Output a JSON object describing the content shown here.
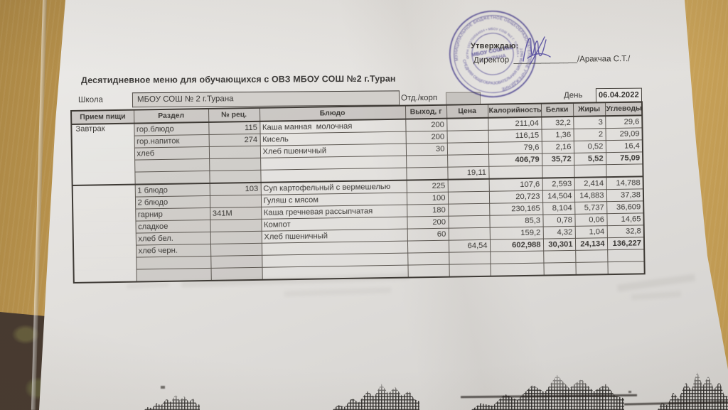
{
  "title": "Десятидневное меню для обучающихся с ОВЗ МБОУ СОШ №2 г.Туран",
  "school_row": {
    "school_label": "Школа",
    "school_value": "МБОУ СОШ № 2 г.Турана",
    "dept_label": "Отд./корп",
    "day_label": "День",
    "day_value": "06.04.2022"
  },
  "approval": {
    "approve_text": "Утверждаю:",
    "director_line": "Директор  ______________/Аракчаа С.Т./"
  },
  "stamp": {
    "ring_top": "МУНИЦИПАЛЬНОЕ БЮДЖЕТНОЕ ОБЩЕОБРАЗОВАТЕЛЬНОЕ УЧРЕЖДЕНИЕ",
    "ring_bottom": "СРЕДНЯЯ ОБЩЕОБРАЗОВАТЕЛЬНАЯ ШКОЛА №2 Г. ТУРАНА",
    "ring_inner": "ОГРН 1021700564654 • МБОУ СОШ №2 Г. ТУРАНА •",
    "center_line1": "МБОУ СОШ №2",
    "center_line2": "Г. ТУРАНА",
    "ink_color": "#584fa8"
  },
  "colors": {
    "paper": "#e5e3e0",
    "wood": "#bd9750",
    "table_line": "#4a4540",
    "cell_shade": "#c9c6c2",
    "signature_ink": "#4f46a0"
  },
  "menu_table": {
    "columns": [
      "Прием пищи",
      "Раздел",
      "№ рец.",
      "Блюдо",
      "Выход, г",
      "Цена",
      "Калорийность",
      "Белки",
      "Жиры",
      "Углеводы"
    ],
    "rows": [
      {
        "cls": "",
        "cells": [
          "Завтрак",
          "гор.блюдо",
          "115",
          "Каша манная  молочная",
          "200",
          "",
          "211,04",
          "32,2",
          "3",
          "29,6"
        ]
      },
      {
        "cls": "",
        "cells": [
          "",
          "гор.напиток",
          "274",
          "Кисель",
          "200",
          "",
          "116,15",
          "1,36",
          "2",
          "29,09"
        ]
      },
      {
        "cls": "",
        "cells": [
          "",
          "хлеб",
          "",
          "Хлеб пшеничный",
          "30",
          "",
          "79,6",
          "2,16",
          "0,52",
          "16,4"
        ]
      },
      {
        "cls": "totals",
        "cells": [
          "",
          "",
          "",
          "",
          "",
          "",
          "406,79",
          "35,72",
          "5,52",
          "75,09"
        ]
      },
      {
        "cls": "",
        "cells": [
          "",
          "",
          "",
          "",
          "",
          "19,11",
          "",
          "",
          "",
          ""
        ]
      },
      {
        "cls": "section-start",
        "cells": [
          "",
          "1 блюдо",
          "103",
          "Суп картофельный с вермешелью",
          "225",
          "",
          "107,6",
          "2,593",
          "2,414",
          "14,788"
        ]
      },
      {
        "cls": "",
        "cells": [
          "",
          "2 блюдо",
          "",
          "Гуляш с мясом",
          "100",
          "",
          "20,723",
          "14,504",
          "14,883",
          "37,38"
        ]
      },
      {
        "cls": "recipe-left",
        "cells": [
          "",
          "гарнир",
          "341М",
          "Каша гречневая рассыпчатая",
          "180",
          "",
          "230,165",
          "8,104",
          "5,737",
          "36,609"
        ]
      },
      {
        "cls": "",
        "cells": [
          "",
          "сладкое",
          "",
          "Компот",
          "200",
          "",
          "85,3",
          "0,78",
          "0,06",
          "14,65"
        ]
      },
      {
        "cls": "",
        "cells": [
          "",
          "хлеб бел.",
          "",
          "Хлеб пшеничный",
          "60",
          "",
          "159,2",
          "4,32",
          "1,04",
          "32,8"
        ]
      },
      {
        "cls": "totals",
        "cells": [
          "",
          "хлеб черн.",
          "",
          "",
          "",
          "64,54",
          "602,988",
          "30,301",
          "24,134",
          "136,227"
        ]
      },
      {
        "cls": "",
        "cells": [
          "",
          "",
          "",
          "",
          "",
          "",
          "",
          "",
          "",
          ""
        ]
      },
      {
        "cls": "",
        "cells": [
          "",
          "",
          "",
          "",
          "",
          "",
          "",
          "",
          "",
          ""
        ]
      }
    ]
  }
}
